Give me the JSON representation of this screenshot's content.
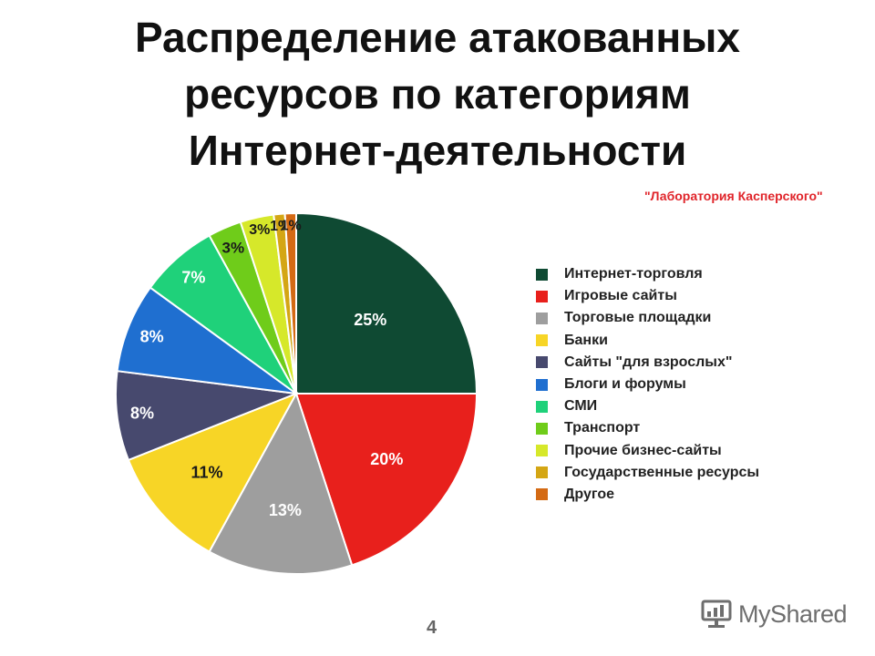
{
  "title_lines": [
    "Распределение атакованных",
    "ресурсов по категориям",
    "Интернет-деятельности"
  ],
  "source": "\"Лаборатория Касперского\"",
  "page_number": "4",
  "brand": {
    "text": "MyShared",
    "icon": "presentation-icon"
  },
  "chart_data": {
    "type": "pie",
    "title": "Распределение атакованных ресурсов по категориям Интернет-деятельности",
    "categories": [
      "Интернет-торговля",
      "Игровые сайты",
      "Торговые площадки",
      "Банки",
      "Сайты \"для взрослых\"",
      "Блоги и форумы",
      "СМИ",
      "Транспорт",
      "Прочие бизнес-сайты",
      "Государственные ресурсы",
      "Другое"
    ],
    "values": [
      25,
      20,
      13,
      11,
      8,
      8,
      7,
      3,
      3,
      1,
      1
    ],
    "labels": [
      "25%",
      "20%",
      "13%",
      "11%",
      "8%",
      "8%",
      "7%",
      "3%",
      "3%",
      "1%",
      "1%"
    ],
    "colors": [
      "#0f4a33",
      "#e8201c",
      "#9e9e9e",
      "#f7d526",
      "#47496e",
      "#1f6fd0",
      "#1fd17a",
      "#6fcc1a",
      "#d6e82a",
      "#d4a614",
      "#d46a14"
    ],
    "legend_position": "right"
  }
}
